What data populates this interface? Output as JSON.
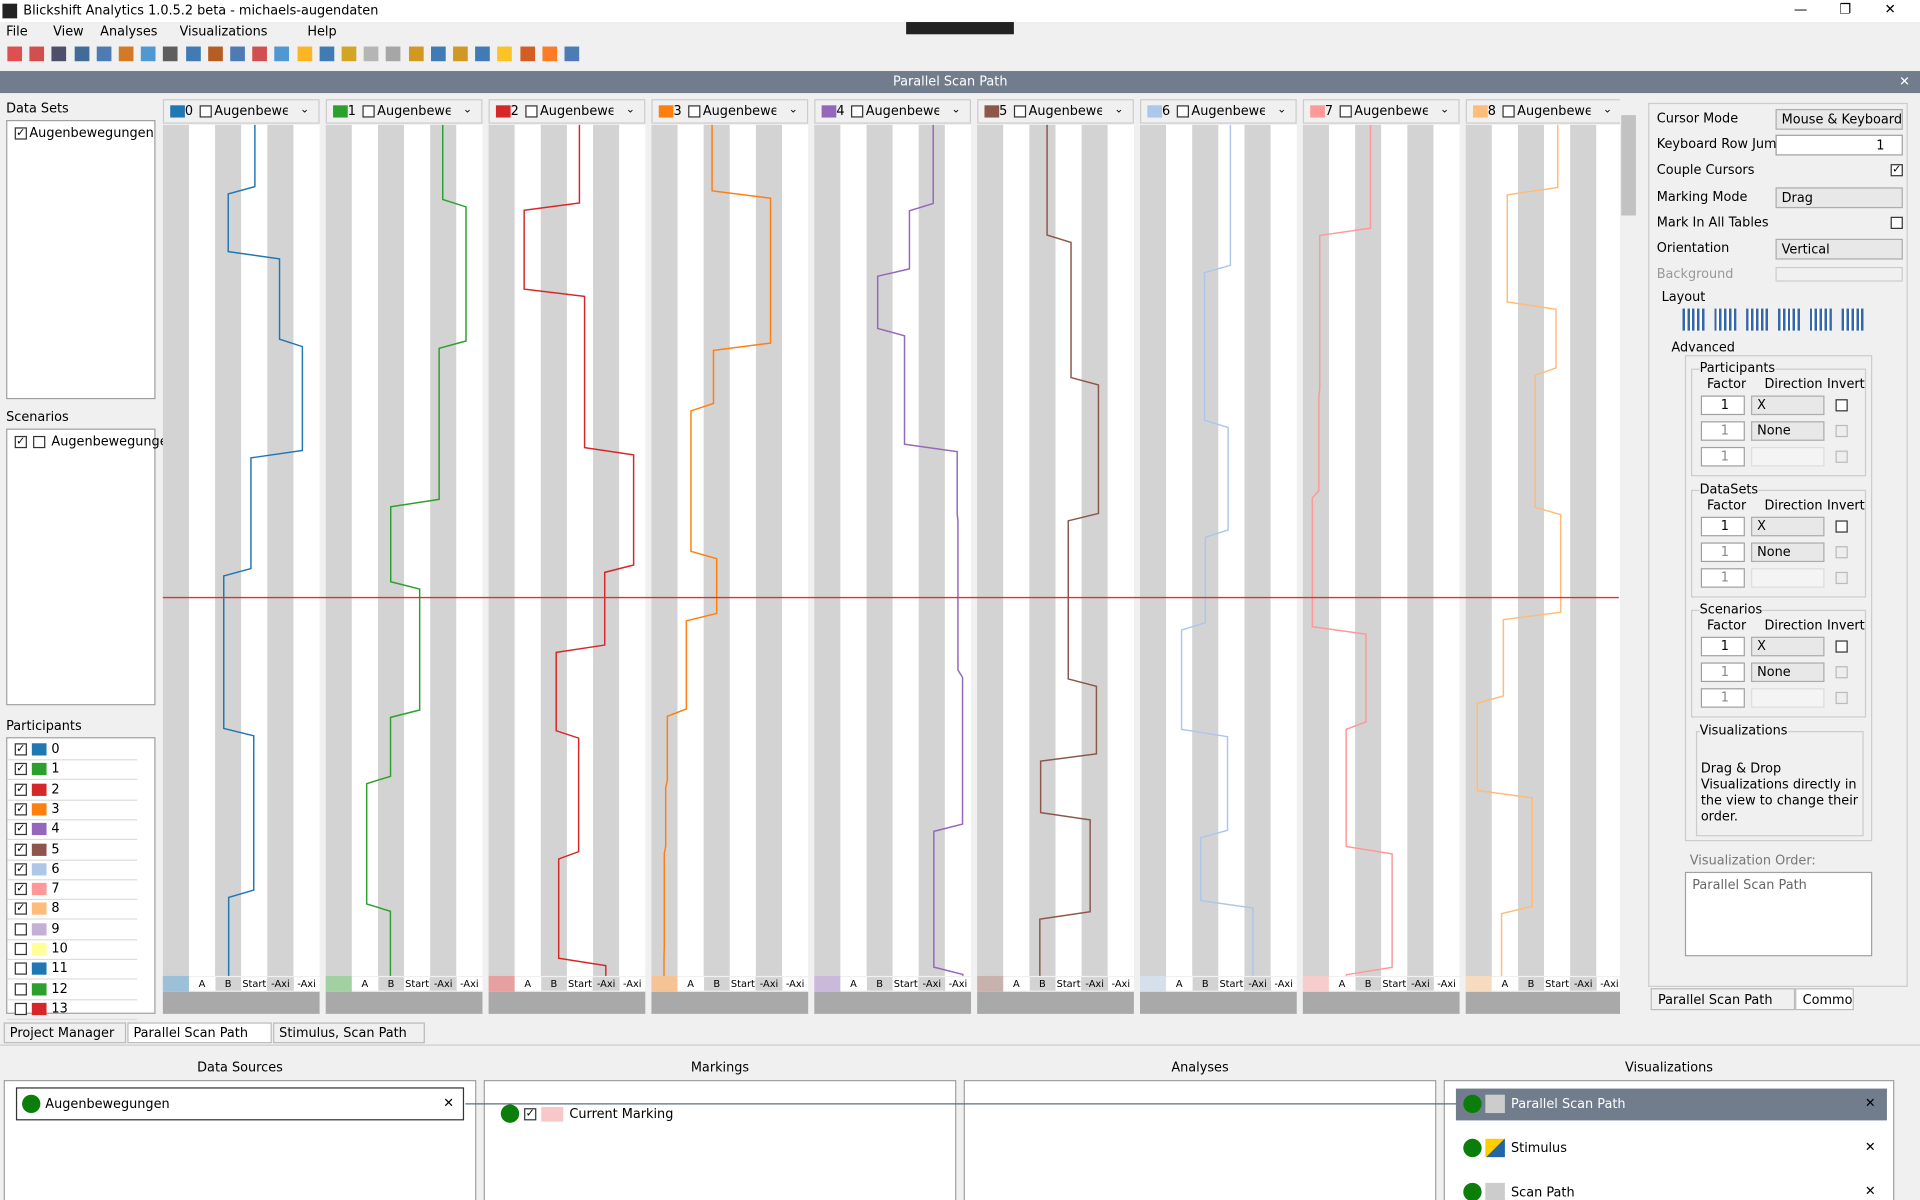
{
  "window": {
    "title": "Blickshift Analytics 1.0.5.2 beta - michaels-augendaten"
  },
  "menu": [
    "File",
    "View",
    "Analyses",
    "Visualizations",
    "Help"
  ],
  "panel_title": "Parallel Scan Path",
  "left": {
    "datasets_title": "Data Sets",
    "datasets": [
      {
        "label": "Augenbewegungen",
        "checked": true
      }
    ],
    "scenarios_title": "Scenarios",
    "scenarios": [
      {
        "label": "Augenbewegungen",
        "checked": true
      }
    ],
    "participants_title": "Participants",
    "participants": [
      {
        "id": "0",
        "color": "#1f77b4",
        "checked": true
      },
      {
        "id": "1",
        "color": "#2ca02c",
        "checked": true
      },
      {
        "id": "2",
        "color": "#d62728",
        "checked": true
      },
      {
        "id": "3",
        "color": "#ff7f0e",
        "checked": true
      },
      {
        "id": "4",
        "color": "#9467bd",
        "checked": true
      },
      {
        "id": "5",
        "color": "#8c564b",
        "checked": true
      },
      {
        "id": "6",
        "color": "#aec7e8",
        "checked": true
      },
      {
        "id": "7",
        "color": "#ff9896",
        "checked": true
      },
      {
        "id": "8",
        "color": "#ffbb78",
        "checked": true
      },
      {
        "id": "9",
        "color": "#c5b0d5",
        "checked": false
      },
      {
        "id": "10",
        "color": "#ffff99",
        "checked": false
      },
      {
        "id": "11",
        "color": "#1f77b4",
        "checked": false
      },
      {
        "id": "12",
        "color": "#2ca02c",
        "checked": false
      },
      {
        "id": "13",
        "color": "#d62728",
        "checked": false
      }
    ]
  },
  "columns": [
    {
      "id": "0",
      "color": "#1f77b4",
      "label": "Augenbewegi"
    },
    {
      "id": "1",
      "color": "#2ca02c",
      "label": "Augenbewegi"
    },
    {
      "id": "2",
      "color": "#d62728",
      "label": "Augenbewegi"
    },
    {
      "id": "3",
      "color": "#ff7f0e",
      "label": "Augenbewegi"
    },
    {
      "id": "4",
      "color": "#9467bd",
      "label": "Augenbewegi"
    },
    {
      "id": "5",
      "color": "#8c564b",
      "label": "Augenbewegi"
    },
    {
      "id": "6",
      "color": "#aec7e8",
      "label": "Augenbewegi"
    },
    {
      "id": "7",
      "color": "#ff9896",
      "label": "Augenbewegi"
    },
    {
      "id": "8",
      "color": "#ffbb78",
      "label": "Augenbewegi"
    }
  ],
  "axis_labels": [
    "A",
    "B",
    "Start",
    "-Axi",
    "-Axi"
  ],
  "settings": {
    "rows": [
      {
        "label": "Cursor Mode",
        "value": "Mouse & Keyboard",
        "kind": "dropdown"
      },
      {
        "label": "Keyboard Row Jump",
        "value": "1",
        "kind": "spin"
      },
      {
        "label": "Couple Cursors",
        "checked": true,
        "kind": "checkbox"
      },
      {
        "label": "Marking Mode",
        "value": "Drag",
        "kind": "dropdown"
      },
      {
        "label": "Mark In All Tables",
        "checked": false,
        "kind": "checkbox"
      },
      {
        "label": "Orientation",
        "value": "Vertical",
        "kind": "dropdown"
      },
      {
        "label": "Background",
        "kind": "color"
      }
    ],
    "layout": "Layout",
    "advanced": "Advanced",
    "headers": [
      "Factor",
      "Direction",
      "Invert"
    ],
    "groups": [
      {
        "title": "Participants",
        "rows": [
          {
            "factor": "1",
            "direction": "X"
          },
          {
            "factor": "1",
            "direction": "None"
          },
          {
            "factor": "1"
          }
        ]
      },
      {
        "title": "DataSets",
        "rows": [
          {
            "factor": "1",
            "direction": "X"
          },
          {
            "factor": "1",
            "direction": "None"
          },
          {
            "factor": "1"
          }
        ]
      },
      {
        "title": "Scenarios",
        "rows": [
          {
            "factor": "1",
            "direction": "X"
          },
          {
            "factor": "1",
            "direction": "None"
          },
          {
            "factor": "1"
          }
        ]
      }
    ],
    "visualizations_title": "Visualizations",
    "visualizations_hint": "Drag & Drop Visualizations directly in the view to change their order.",
    "order_title": "Visualization Order:",
    "order": [
      "Parallel Scan Path"
    ],
    "tabs": [
      "Parallel Scan Path",
      "Common"
    ]
  },
  "tabs": [
    "Project Manager",
    "Parallel Scan Path",
    "Stimulus, Scan Path"
  ],
  "pipeline": {
    "headers": [
      "Data Sources",
      "Markings",
      "Analyses",
      "Visualizations"
    ],
    "data_sources": [
      "Augenbewegungen"
    ],
    "markings": [
      "Current Marking"
    ],
    "visualizations": [
      "Parallel Scan Path",
      "Stimulus",
      "Scan Path"
    ]
  }
}
